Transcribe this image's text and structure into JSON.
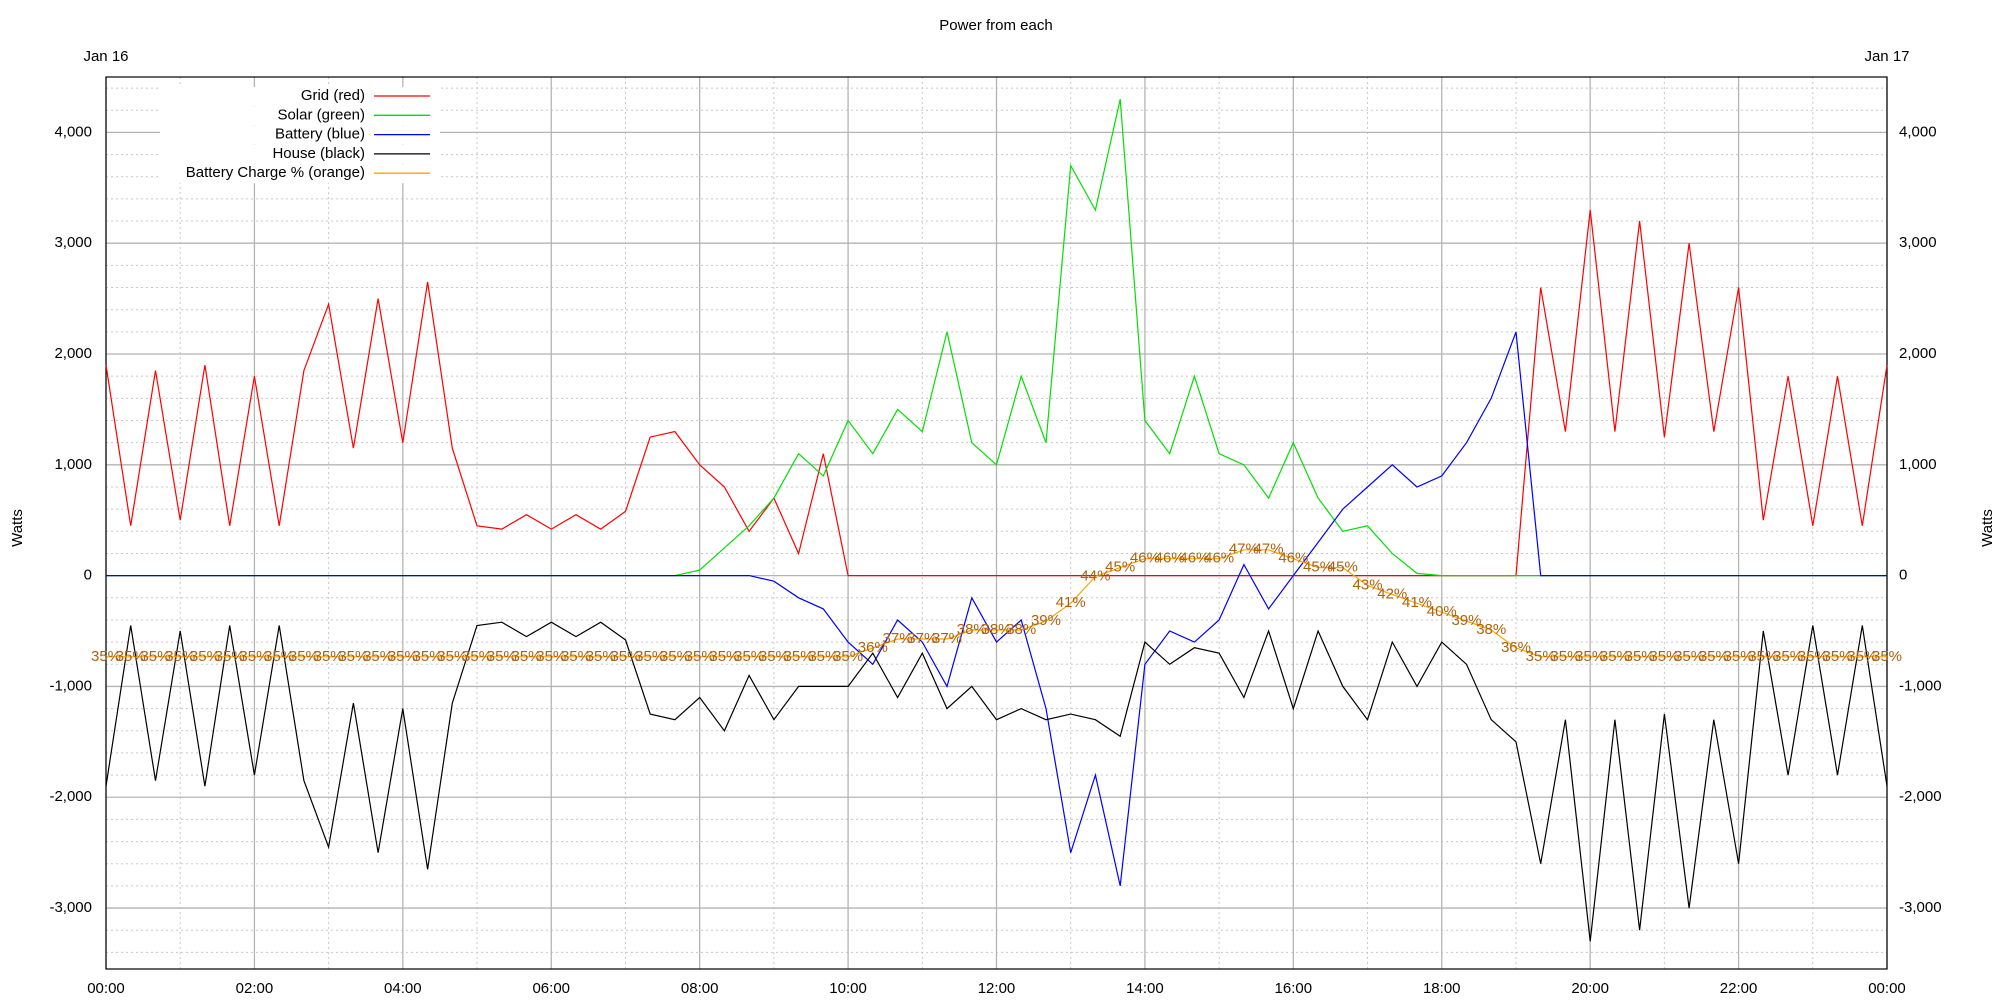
{
  "chart_data": {
    "type": "line",
    "title": "Power from each",
    "date_labels": [
      "Jan 16",
      "Jan 17"
    ],
    "ylabel": "Watts",
    "ylabel_right": "Watts",
    "x": [
      0,
      20,
      40,
      60,
      80,
      100,
      120,
      140,
      160,
      180,
      200,
      220,
      240,
      260,
      280,
      300,
      320,
      340,
      360,
      380,
      400,
      420,
      440,
      460,
      480,
      500,
      520,
      540,
      560,
      580,
      600,
      620,
      640,
      660,
      680,
      700,
      720,
      740,
      760,
      780,
      800,
      820,
      840,
      860,
      880,
      900,
      920,
      940,
      960,
      980,
      1000,
      1020,
      1040,
      1060,
      1080,
      1100,
      1120,
      1140,
      1160,
      1180,
      1200,
      1220,
      1240,
      1260,
      1280,
      1300,
      1320,
      1340,
      1360,
      1380,
      1400,
      1420,
      1440
    ],
    "xlim": [
      0,
      1440
    ],
    "xticks": [
      {
        "value": 0,
        "label": "00:00"
      },
      {
        "value": 120,
        "label": "02:00"
      },
      {
        "value": 240,
        "label": "04:00"
      },
      {
        "value": 360,
        "label": "06:00"
      },
      {
        "value": 480,
        "label": "08:00"
      },
      {
        "value": 600,
        "label": "10:00"
      },
      {
        "value": 720,
        "label": "12:00"
      },
      {
        "value": 840,
        "label": "14:00"
      },
      {
        "value": 960,
        "label": "16:00"
      },
      {
        "value": 1080,
        "label": "18:00"
      },
      {
        "value": 1200,
        "label": "20:00"
      },
      {
        "value": 1320,
        "label": "22:00"
      },
      {
        "value": 1440,
        "label": "00:00"
      }
    ],
    "ylim": [
      -3550,
      4500
    ],
    "yticks": [
      {
        "value": -3000,
        "label": "-3,000"
      },
      {
        "value": -2000,
        "label": "-2,000"
      },
      {
        "value": -1000,
        "label": "-1,000"
      },
      0,
      {
        "value": 1000,
        "label": "1,000"
      },
      {
        "value": 2000,
        "label": "2,000"
      },
      {
        "value": 3000,
        "label": "3,000"
      },
      {
        "value": 4000,
        "label": "4,000"
      }
    ],
    "y2lim": [
      0,
      100
    ],
    "grid": true,
    "legend": "top-left",
    "series": [
      {
        "name": "Grid (red)",
        "color": "#ff0000",
        "values": [
          1900,
          450,
          1850,
          500,
          1900,
          450,
          1800,
          450,
          1850,
          2450,
          1150,
          2500,
          1200,
          2650,
          1150,
          450,
          420,
          550,
          420,
          550,
          420,
          580,
          1250,
          1300,
          1000,
          800,
          400,
          700,
          200,
          1100,
          0,
          0,
          0,
          0,
          0,
          0,
          0,
          0,
          0,
          0,
          0,
          0,
          0,
          0,
          0,
          0,
          0,
          0,
          0,
          0,
          0,
          0,
          0,
          0,
          0,
          0,
          0,
          0,
          2600,
          1300,
          3300,
          1300,
          3200,
          1250,
          3000,
          1300,
          2600,
          500,
          1800,
          450,
          1800,
          450,
          1900
        ]
      },
      {
        "name": "Solar (green)",
        "color": "#00e000",
        "values": [
          0,
          0,
          0,
          0,
          0,
          0,
          0,
          0,
          0,
          0,
          0,
          0,
          0,
          0,
          0,
          0,
          0,
          0,
          0,
          0,
          0,
          0,
          0,
          0,
          50,
          250,
          450,
          700,
          1100,
          900,
          1400,
          1100,
          1500,
          1300,
          2200,
          1200,
          1000,
          1800,
          1200,
          3700,
          3300,
          4300,
          1400,
          1100,
          1800,
          1100,
          1000,
          700,
          1200,
          700,
          400,
          450,
          200,
          20,
          0,
          0,
          0,
          0,
          0,
          0,
          0,
          0,
          0,
          0,
          0,
          0,
          0,
          0,
          0,
          0,
          0,
          0,
          0
        ]
      },
      {
        "name": "Battery (blue)",
        "color": "#0000ff",
        "values": [
          0,
          0,
          0,
          0,
          0,
          0,
          0,
          0,
          0,
          0,
          0,
          0,
          0,
          0,
          0,
          0,
          0,
          0,
          0,
          0,
          0,
          0,
          0,
          0,
          0,
          0,
          0,
          -50,
          -200,
          -300,
          -600,
          -800,
          -400,
          -600,
          -1000,
          -200,
          -600,
          -400,
          -1200,
          -2500,
          -1800,
          -2800,
          -800,
          -500,
          -600,
          -400,
          100,
          -300,
          0,
          300,
          600,
          800,
          1000,
          800,
          900,
          1200,
          1600,
          2200,
          0,
          0,
          0,
          0,
          0,
          0,
          0,
          0,
          0,
          0,
          0,
          0,
          0,
          0,
          0
        ]
      },
      {
        "name": "House (black)",
        "color": "#000000",
        "values": [
          -1900,
          -450,
          -1850,
          -500,
          -1900,
          -450,
          -1800,
          -450,
          -1850,
          -2450,
          -1150,
          -2500,
          -1200,
          -2650,
          -1150,
          -450,
          -420,
          -550,
          -420,
          -550,
          -420,
          -580,
          -1250,
          -1300,
          -1100,
          -1400,
          -900,
          -1300,
          -1000,
          -1000,
          -1000,
          -700,
          -1100,
          -700,
          -1200,
          -1000,
          -1300,
          -1200,
          -1300,
          -1250,
          -1300,
          -1450,
          -600,
          -800,
          -650,
          -700,
          -1100,
          -500,
          -1200,
          -500,
          -1000,
          -1300,
          -600,
          -1000,
          -600,
          -800,
          -1300,
          -1500,
          -2600,
          -1300,
          -3300,
          -1300,
          -3200,
          -1250,
          -3000,
          -1300,
          -2600,
          -500,
          -1800,
          -450,
          -1800,
          -450,
          -1900
        ]
      },
      {
        "name": "Battery Charge % (orange)",
        "color": "#ffa500",
        "label_color": "#b0600c",
        "axis": "y2",
        "values": [
          35,
          35,
          35,
          35,
          35,
          35,
          35,
          35,
          35,
          35,
          35,
          35,
          35,
          35,
          35,
          35,
          35,
          35,
          35,
          35,
          35,
          35,
          35,
          35,
          35,
          35,
          35,
          35,
          35,
          35,
          35,
          36,
          37,
          37,
          37,
          38,
          38,
          38,
          39,
          41,
          44,
          45,
          46,
          46,
          46,
          46,
          47,
          47,
          46,
          45,
          45,
          43,
          42,
          41,
          40,
          39,
          38,
          36,
          35,
          35,
          35,
          35,
          35,
          35,
          35,
          35,
          35,
          35,
          35,
          35,
          35,
          35,
          35
        ],
        "value_labels": [
          "35%",
          "35%",
          "35%",
          "35%",
          "35%",
          "35%",
          "35%",
          "35%",
          "35%",
          "35%",
          "35%",
          "35%",
          "35%",
          "35%",
          "35%",
          "35%",
          "35%",
          "35%",
          "35%",
          "35%",
          "35%",
          "35%",
          "35%",
          "35%",
          "35%",
          "35%",
          "35%",
          "35%",
          "35%",
          "35%",
          "35%",
          "36%",
          "37%",
          "37%",
          "37%",
          "38%",
          "38%",
          "38%",
          "39%",
          "41%",
          "44%",
          "45%",
          "46%",
          "46%",
          "46%",
          "46%",
          "47%",
          "47%",
          "46%",
          "45%",
          "45%",
          "43%",
          "42%",
          "41%",
          "40%",
          "39%",
          "38%",
          "36%",
          "35%",
          "35%",
          "35%",
          "35%",
          "35%",
          "35%",
          "35%",
          "35%",
          "35%",
          "35%",
          "35%",
          "35%",
          "35%",
          "35%",
          "35%"
        ]
      }
    ]
  }
}
